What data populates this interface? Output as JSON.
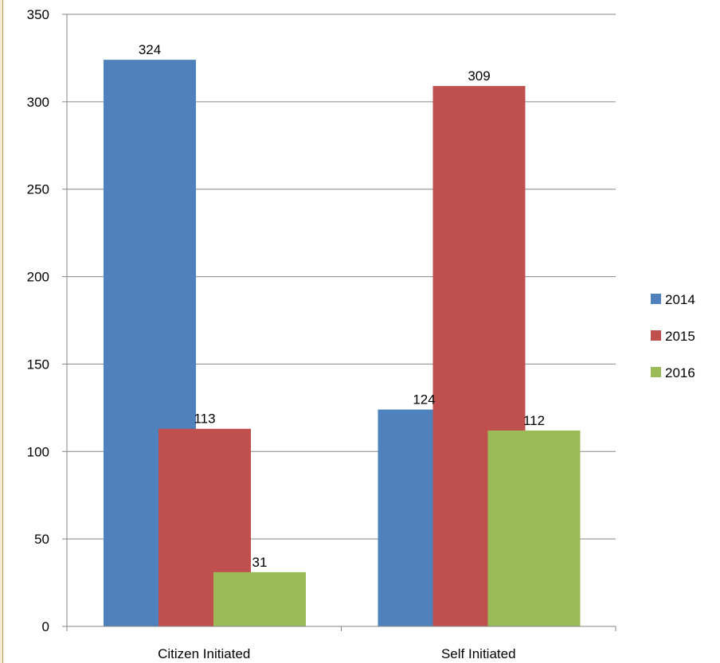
{
  "chart_data": {
    "type": "bar",
    "title": "",
    "xlabel": "",
    "ylabel": "",
    "categories": [
      "Citizen Initiated",
      "Self Initiated"
    ],
    "series": [
      {
        "name": "2014",
        "color": "#4f81bd",
        "values": [
          324,
          124
        ]
      },
      {
        "name": "2015",
        "color": "#c0504d",
        "values": [
          113,
          309
        ]
      },
      {
        "name": "2016",
        "color": "#9bbb59",
        "values": [
          31,
          112
        ]
      }
    ],
    "ylim": [
      0,
      350
    ],
    "yticks": [
      0,
      50,
      100,
      150,
      200,
      250,
      300,
      350
    ],
    "grid": true,
    "legend_position": "right",
    "data_labels": true,
    "gridline_color": "#868686"
  }
}
